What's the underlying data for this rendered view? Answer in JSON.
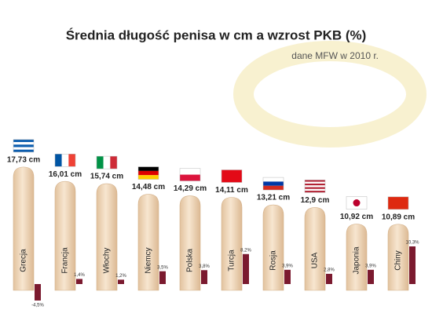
{
  "chart_data": {
    "type": "bar",
    "title": "Średnia długość penisa w cm a wzrost PKB (%)",
    "subtitle": "dane MFW w 2010 r.",
    "categories": [
      "Grecja",
      "Francja",
      "Włochy",
      "Niemcy",
      "Polska",
      "Turcja",
      "Rosja",
      "USA",
      "Japonia",
      "Chiny"
    ],
    "series": [
      {
        "color": "#f0d9bb",
        "values": [
          17.73,
          16.01,
          15.74,
          14.48,
          14.29,
          14.11,
          13.21,
          12.9,
          10.92,
          10.89
        ],
        "value_labels": [
          "17,73 cm",
          "16,01 cm",
          "15,74 cm",
          "14,48 cm",
          "14,29 cm",
          "14,11 cm",
          "13,21 cm",
          "12,9 cm",
          "10,92 cm",
          "10,89 cm"
        ]
      },
      {
        "color": "#7b1a2f",
        "axis": "y2",
        "values": [
          -4.5,
          1.4,
          1.2,
          3.5,
          3.8,
          8.2,
          3.9,
          2.8,
          3.9,
          10.3
        ],
        "value_labels": [
          "-4,5%",
          "1,4%",
          "1,2%",
          "3,5%",
          "3,8%",
          "8,2%",
          "3,9%",
          "2,8%",
          "3,9%",
          "10,3%"
        ]
      }
    ],
    "ylim": [
      3,
      18
    ],
    "y2lim": [
      -6,
      12
    ]
  }
}
